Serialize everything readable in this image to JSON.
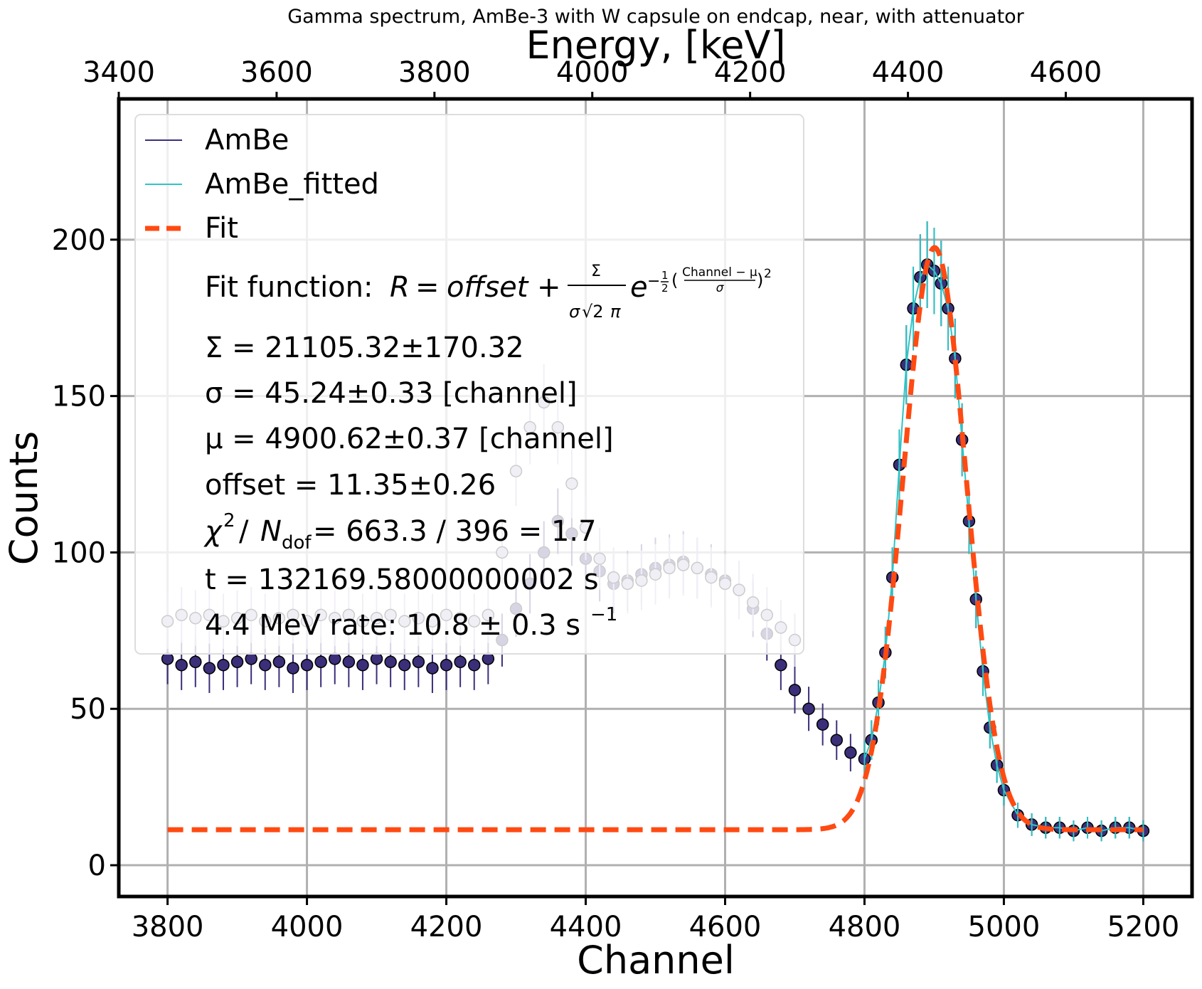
{
  "chart_data": {
    "type": "scatter",
    "title": "Gamma spectrum, AmBe-3 with W capsule on endcap, near, with attenuator",
    "xlabel": "Channel",
    "ylabel": "Counts",
    "top_xlabel": "Energy, [keV]",
    "xlim": [
      3730,
      5270
    ],
    "ylim": [
      -10,
      245
    ],
    "top_xlim": [
      3400,
      4760
    ],
    "x_ticks": [
      3800,
      4000,
      4200,
      4400,
      4600,
      4800,
      5000,
      5200
    ],
    "x_ticklabels": [
      "3800",
      "4000",
      "4200",
      "4400",
      "4600",
      "4800",
      "5000",
      "5200"
    ],
    "y_ticks": [
      0,
      50,
      100,
      150,
      200
    ],
    "y_ticklabels": [
      "0",
      "50",
      "100",
      "150",
      "200"
    ],
    "top_x_ticks": [
      3400,
      3600,
      3800,
      4000,
      4200,
      4400,
      4600
    ],
    "top_x_ticklabels": [
      "3400",
      "3600",
      "3800",
      "4000",
      "4200",
      "4400",
      "4600"
    ],
    "grid": true,
    "legend_position": "top-left",
    "series": [
      {
        "name": "AmBe",
        "color": "#3b2f7a",
        "marker": "circle",
        "error_bars": true,
        "x": [
          3800,
          3820,
          3840,
          3860,
          3880,
          3900,
          3920,
          3940,
          3960,
          3980,
          4000,
          4020,
          4040,
          4060,
          4080,
          4100,
          4120,
          4140,
          4160,
          4180,
          4200,
          4220,
          4240,
          4260,
          4280,
          4300,
          4320,
          4340,
          4360,
          4380,
          4400,
          4420,
          4440,
          4460,
          4480,
          4500,
          4520,
          4540,
          4560,
          4580,
          4600,
          4620,
          4640,
          4660,
          4680,
          4700,
          4720,
          4740,
          4760,
          4780,
          4800,
          4810,
          4820,
          4830,
          4840,
          4850,
          4860,
          4870,
          4880,
          4890,
          4900,
          4910,
          4920,
          4930,
          4940,
          4950,
          4960,
          4970,
          4980,
          4990,
          5000,
          5020,
          5040,
          5060,
          5080,
          5100,
          5120,
          5140,
          5160,
          5180,
          5200
        ],
        "y": [
          66,
          64,
          65,
          63,
          64,
          65,
          66,
          64,
          65,
          63,
          64,
          65,
          66,
          65,
          64,
          66,
          65,
          64,
          65,
          63,
          64,
          65,
          64,
          66,
          72,
          82,
          90,
          100,
          110,
          106,
          98,
          94,
          90,
          91,
          93,
          95,
          96,
          97,
          95,
          93,
          91,
          88,
          82,
          74,
          64,
          56,
          50,
          45,
          40,
          36,
          34,
          40,
          52,
          68,
          92,
          128,
          160,
          178,
          188,
          192,
          190,
          186,
          178,
          162,
          136,
          110,
          85,
          62,
          44,
          32,
          24,
          16,
          13,
          12,
          12,
          11,
          12,
          11,
          12,
          12,
          11
        ]
      },
      {
        "name": "AmBe_fitted",
        "color": "#2ec4c4",
        "error_bars": true,
        "x": [
          4800,
          4810,
          4820,
          4830,
          4840,
          4850,
          4860,
          4870,
          4880,
          4890,
          4900,
          4910,
          4920,
          4930,
          4940,
          4950,
          4960,
          4970,
          4980,
          4990,
          5000,
          5020,
          5040,
          5060,
          5080,
          5100,
          5120,
          5140,
          5160,
          5180,
          5200
        ],
        "y": [
          34,
          40,
          52,
          68,
          92,
          128,
          160,
          178,
          188,
          192,
          190,
          186,
          178,
          162,
          136,
          110,
          85,
          62,
          44,
          32,
          24,
          16,
          13,
          12,
          12,
          11,
          12,
          11,
          12,
          12,
          11
        ]
      },
      {
        "name": "Fit",
        "color": "#ff4a12",
        "line_style": "dashed",
        "function": "gaussian_plus_offset",
        "params": {
          "Sigma": 21105.32,
          "sigma": 45.24,
          "mu": 4900.62,
          "offset": 11.35
        },
        "x_range": [
          3800,
          5200
        ]
      },
      {
        "color": "#b7b1d2",
        "marker": "circle",
        "error_bars": true,
        "x": [
          3800,
          3820,
          3840,
          3860,
          3880,
          3900,
          3920,
          3940,
          3960,
          3980,
          4000,
          4020,
          4040,
          4060,
          4080,
          4100,
          4120,
          4140,
          4160,
          4180,
          4200,
          4220,
          4240,
          4260,
          4280,
          4300,
          4320,
          4340,
          4360,
          4380,
          4400,
          4420,
          4440,
          4460,
          4480,
          4500,
          4520,
          4540,
          4560,
          4580,
          4600,
          4620,
          4640,
          4660,
          4680,
          4700
        ],
        "y": [
          78,
          80,
          79,
          80,
          78,
          79,
          80,
          78,
          79,
          80,
          78,
          80,
          79,
          80,
          78,
          79,
          80,
          78,
          79,
          78,
          80,
          79,
          78,
          80,
          100,
          126,
          140,
          148,
          140,
          122,
          108,
          98,
          92,
          90,
          91,
          93,
          95,
          96,
          95,
          92,
          90,
          88,
          84,
          80,
          76,
          72
        ]
      }
    ],
    "legend": {
      "entries": [
        "AmBe",
        "AmBe_fitted",
        "Fit"
      ],
      "fit_function_label": "Fit function:",
      "sigma_total": "Σ = 21105.32±170.32",
      "sigma_width": "σ = 45.24±0.33 [channel]",
      "mu": "μ = 4900.62±0.37 [channel]",
      "offset": "offset = 11.35±0.26",
      "chi2_value": " = 663.3 / 396 = 1.7",
      "time": "t = 132169.58000000002 s",
      "rate_prefix": "4.4 MeV rate: 10.8 ± 0.3 s"
    }
  }
}
